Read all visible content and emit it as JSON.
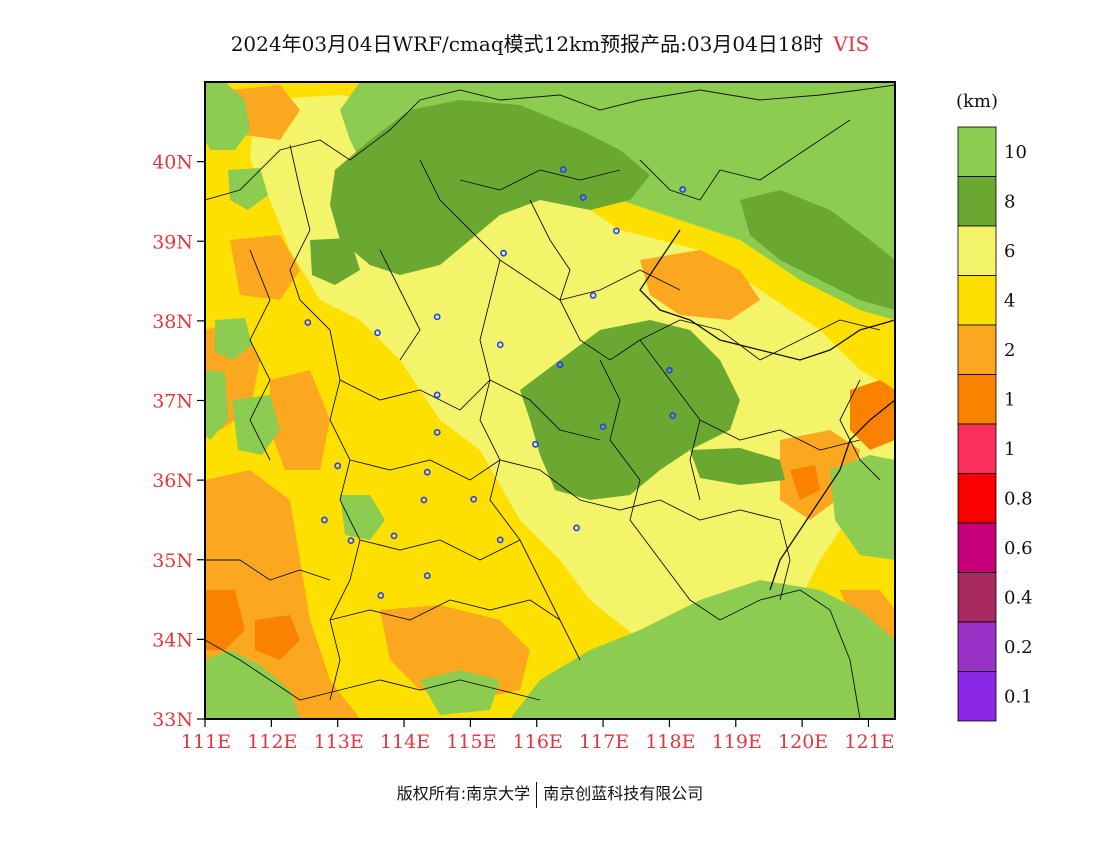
{
  "title": {
    "text": "2024年03月04日WRF/cmaq模式12km预报产品:03月04日18时",
    "variable": "VIS"
  },
  "axes": {
    "y_ticks": [
      "33N",
      "34N",
      "35N",
      "36N",
      "37N",
      "38N",
      "39N",
      "40N"
    ],
    "x_ticks": [
      "111E",
      "112E",
      "113E",
      "114E",
      "115E",
      "116E",
      "117E",
      "118E",
      "119E",
      "120E",
      "121E"
    ],
    "lon_range": [
      111,
      121.4
    ],
    "lat_range": [
      33,
      41
    ]
  },
  "colorbar": {
    "unit": "(km)",
    "labels": [
      "10",
      "8",
      "6",
      "4",
      "2",
      "1",
      "1",
      "0.8",
      "0.6",
      "0.4",
      "0.2",
      "0.1"
    ],
    "colors": [
      "#8ccc50",
      "#6aa832",
      "#f4f46a",
      "#fde000",
      "#fba71f",
      "#fa8200",
      "#fb2f5c",
      "#fa0000",
      "#c8007a",
      "#a82a5e",
      "#9a32c8",
      "#8a28e6"
    ]
  },
  "map": {
    "colors": {
      "high": "#8ccc50",
      "high_dark": "#6aa832",
      "mid_light": "#f4f46a",
      "mid": "#fde000",
      "low": "#fba71f",
      "lower": "#fa8200",
      "station": "#2040ff"
    },
    "stations": [
      [
        116.4,
        39.9
      ],
      [
        116.7,
        39.55
      ],
      [
        117.2,
        39.13
      ],
      [
        118.2,
        39.65
      ],
      [
        115.5,
        38.85
      ],
      [
        116.85,
        38.32
      ],
      [
        112.55,
        37.98
      ],
      [
        113.6,
        37.85
      ],
      [
        114.5,
        38.05
      ],
      [
        115.45,
        37.7
      ],
      [
        116.35,
        37.45
      ],
      [
        118.0,
        37.38
      ],
      [
        114.5,
        37.07
      ],
      [
        114.5,
        36.6
      ],
      [
        115.98,
        36.45
      ],
      [
        117.0,
        36.67
      ],
      [
        118.05,
        36.81
      ],
      [
        113.0,
        36.18
      ],
      [
        114.35,
        36.1
      ],
      [
        114.3,
        35.75
      ],
      [
        115.05,
        35.76
      ],
      [
        112.8,
        35.5
      ],
      [
        113.2,
        35.24
      ],
      [
        113.85,
        35.3
      ],
      [
        115.45,
        35.25
      ],
      [
        116.6,
        35.4
      ],
      [
        114.35,
        34.8
      ],
      [
        113.65,
        34.55
      ]
    ]
  },
  "footer": {
    "left": "版权所有:南京大学",
    "right": "南京创蓝科技有限公司"
  }
}
